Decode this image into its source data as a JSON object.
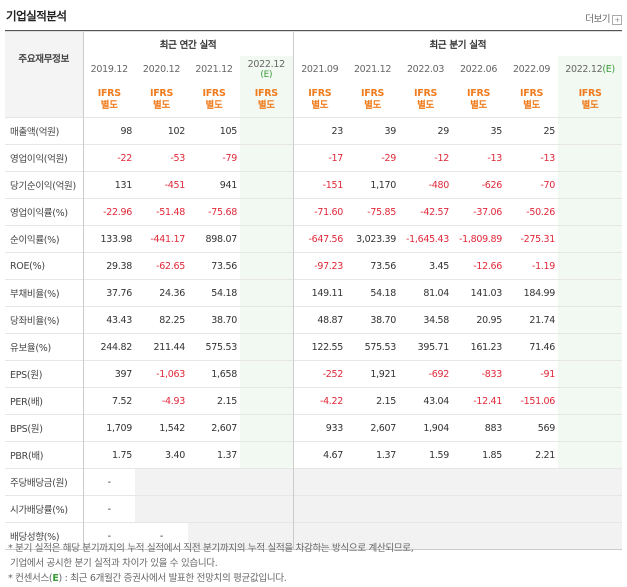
{
  "header": {
    "title": "기업실적분석",
    "more_label": "더보기",
    "more_icon": "plus-box-icon"
  },
  "table": {
    "row_header_label": "주요재무정보",
    "annual_group": "최근 연간 실적",
    "quarter_group": "최근 분기 실적",
    "annual_periods": [
      "2019.12",
      "2020.12",
      "2021.12",
      "2022.12"
    ],
    "annual_estimate_suffix": "(E)",
    "quarter_periods": [
      "2021.09",
      "2021.12",
      "2022.03",
      "2022.06",
      "2022.09",
      "2022.12"
    ],
    "quarter_estimate_suffix": "(E)",
    "ifrs_line1": "IFRS",
    "ifrs_line2": "별도",
    "rows": [
      {
        "label": "매출액(억원)",
        "annual": [
          "98",
          "102",
          "105",
          ""
        ],
        "quarter": [
          "23",
          "39",
          "29",
          "35",
          "25",
          ""
        ]
      },
      {
        "label": "영업이익(억원)",
        "annual": [
          "-22",
          "-53",
          "-79",
          ""
        ],
        "quarter": [
          "-17",
          "-29",
          "-12",
          "-13",
          "-13",
          ""
        ]
      },
      {
        "label": "당기순이익(억원)",
        "annual": [
          "131",
          "-451",
          "941",
          ""
        ],
        "quarter": [
          "-151",
          "1,170",
          "-480",
          "-626",
          "-70",
          ""
        ]
      },
      {
        "label": "영업이익률(%)",
        "annual": [
          "-22.96",
          "-51.48",
          "-75.68",
          ""
        ],
        "quarter": [
          "-71.60",
          "-75.85",
          "-42.57",
          "-37.06",
          "-50.26",
          ""
        ]
      },
      {
        "label": "순이익률(%)",
        "annual": [
          "133.98",
          "-441.17",
          "898.07",
          ""
        ],
        "quarter": [
          "-647.56",
          "3,023.39",
          "-1,645.43",
          "-1,809.89",
          "-275.31",
          ""
        ]
      },
      {
        "label": "ROE(%)",
        "annual": [
          "29.38",
          "-62.65",
          "73.56",
          ""
        ],
        "quarter": [
          "-97.23",
          "73.56",
          "3.45",
          "-12.66",
          "-1.19",
          ""
        ]
      },
      {
        "label": "부채비율(%)",
        "annual": [
          "37.76",
          "24.36",
          "54.18",
          ""
        ],
        "quarter": [
          "149.11",
          "54.18",
          "81.04",
          "141.03",
          "184.99",
          ""
        ]
      },
      {
        "label": "당좌비율(%)",
        "annual": [
          "43.43",
          "82.25",
          "38.70",
          ""
        ],
        "quarter": [
          "48.87",
          "38.70",
          "34.58",
          "20.95",
          "21.74",
          ""
        ]
      },
      {
        "label": "유보율(%)",
        "annual": [
          "244.82",
          "211.44",
          "575.53",
          ""
        ],
        "quarter": [
          "122.55",
          "575.53",
          "395.71",
          "161.23",
          "71.46",
          ""
        ]
      },
      {
        "label": "EPS(원)",
        "annual": [
          "397",
          "-1,063",
          "1,658",
          ""
        ],
        "quarter": [
          "-252",
          "1,921",
          "-692",
          "-833",
          "-91",
          ""
        ]
      },
      {
        "label": "PER(배)",
        "annual": [
          "7.52",
          "-4.93",
          "2.15",
          ""
        ],
        "quarter": [
          "-4.22",
          "2.15",
          "43.04",
          "-12.41",
          "-151.06",
          ""
        ]
      },
      {
        "label": "BPS(원)",
        "annual": [
          "1,709",
          "1,542",
          "2,607",
          ""
        ],
        "quarter": [
          "933",
          "2,607",
          "1,904",
          "883",
          "569",
          ""
        ]
      },
      {
        "label": "PBR(배)",
        "annual": [
          "1.75",
          "3.40",
          "1.37",
          ""
        ],
        "quarter": [
          "4.67",
          "1.37",
          "1.59",
          "1.85",
          "2.21",
          ""
        ]
      },
      {
        "label": "주당배당금(원)",
        "annual": [
          "-",
          "",
          "",
          ""
        ],
        "quarter": [
          "",
          "",
          "",
          "",
          "",
          ""
        ],
        "gray_from": 1
      },
      {
        "label": "시가배당률(%)",
        "annual": [
          "-",
          "",
          "",
          ""
        ],
        "quarter": [
          "",
          "",
          "",
          "",
          "",
          ""
        ],
        "gray_from": 1
      },
      {
        "label": "배당성향(%)",
        "annual": [
          "-",
          "-",
          "",
          ""
        ],
        "quarter": [
          "",
          "",
          "",
          "",
          "",
          ""
        ],
        "gray_from": 2
      }
    ]
  },
  "notes": {
    "line1": "* 분기 실적은 해당 분기까지의 누적 실적에서 직전 분기까지의 누적 실적을 차감하는 방식으로 계산되므로,",
    "line2": "기업에서 공시한 분기 실적과 차이가 있을 수 있습니다.",
    "line3_prefix": "* 컨센서스(",
    "line3_mark": "E",
    "line3_suffix": ") : 최근 6개월간 증권사에서 발표한 전망치의 평균값입니다."
  },
  "colors": {
    "negative": "#e0283a",
    "ifrs": "#f07c1e",
    "estimate_bg": "#f2f8f2",
    "label_bg": "#f4f4f4"
  }
}
